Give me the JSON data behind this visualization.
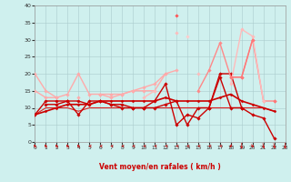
{
  "xlabel": "Vent moyen/en rafales ( km/h )",
  "xlim": [
    0,
    23
  ],
  "ylim": [
    0,
    40
  ],
  "yticks": [
    0,
    5,
    10,
    15,
    20,
    25,
    30,
    35,
    40
  ],
  "xticks": [
    0,
    1,
    2,
    3,
    4,
    5,
    6,
    7,
    8,
    9,
    10,
    11,
    12,
    13,
    14,
    15,
    16,
    17,
    18,
    19,
    20,
    21,
    22,
    23
  ],
  "bg_color": "#cff0ee",
  "grid_color": "#aacccc",
  "series": [
    {
      "y": [
        8,
        12,
        12,
        12,
        8,
        12,
        12,
        11,
        11,
        10,
        10,
        12,
        17,
        5,
        8,
        7,
        10,
        20,
        20,
        10,
        8,
        7,
        1,
        null
      ],
      "color": "#cc0000",
      "lw": 1.0,
      "marker": "D",
      "ms": 1.8
    },
    {
      "y": [
        null,
        11,
        11,
        12,
        12,
        11,
        12,
        11,
        10,
        10,
        10,
        10,
        11,
        12,
        5,
        10,
        10,
        19,
        10,
        10,
        null,
        null,
        null,
        null
      ],
      "color": "#cc0000",
      "lw": 1.0,
      "marker": "D",
      "ms": 1.8
    },
    {
      "y": [
        20,
        15,
        13,
        14,
        20,
        14,
        14,
        14,
        14,
        15,
        15,
        15,
        20,
        21,
        null,
        null,
        null,
        null,
        null,
        null,
        null,
        null,
        null,
        null
      ],
      "color": "#ffaaaa",
      "lw": 1.0,
      "marker": "D",
      "ms": 1.8
    },
    {
      "y": [
        15,
        13,
        13,
        null,
        13,
        null,
        14,
        13,
        14,
        15,
        16,
        17,
        20,
        null,
        null,
        null,
        null,
        null,
        null,
        null,
        null,
        null,
        null,
        null
      ],
      "color": "#ffaaaa",
      "lw": 1.0,
      "marker": "D",
      "ms": 1.8
    },
    {
      "y": [
        null,
        null,
        null,
        null,
        null,
        null,
        null,
        null,
        null,
        null,
        null,
        null,
        null,
        null,
        null,
        15,
        21,
        29,
        19,
        19,
        30,
        12,
        12,
        null
      ],
      "color": "#ff8888",
      "lw": 1.0,
      "marker": "D",
      "ms": 1.8
    },
    {
      "y": [
        null,
        null,
        null,
        null,
        null,
        null,
        null,
        null,
        null,
        null,
        13,
        15,
        null,
        32,
        null,
        20,
        null,
        null,
        17,
        33,
        31,
        12,
        null,
        null
      ],
      "color": "#ffbbbb",
      "lw": 1.0,
      "marker": "D",
      "ms": 1.8
    },
    {
      "y": [
        null,
        null,
        null,
        null,
        null,
        null,
        null,
        null,
        null,
        null,
        null,
        null,
        null,
        37,
        null,
        null,
        null,
        null,
        null,
        null,
        null,
        null,
        null,
        null
      ],
      "color": "#ff5555",
      "lw": 1.0,
      "marker": "D",
      "ms": 1.8
    },
    {
      "y": [
        null,
        null,
        null,
        null,
        null,
        null,
        null,
        null,
        null,
        null,
        null,
        null,
        null,
        null,
        31,
        null,
        null,
        null,
        null,
        null,
        null,
        null,
        null,
        null
      ],
      "color": "#ffcccc",
      "lw": 1.0,
      "marker": "D",
      "ms": 1.8
    },
    {
      "y": [
        null,
        null,
        null,
        null,
        null,
        null,
        null,
        null,
        null,
        null,
        null,
        null,
        null,
        null,
        null,
        null,
        null,
        null,
        19,
        19,
        30,
        null,
        12,
        null
      ],
      "color": "#ff7777",
      "lw": 1.0,
      "marker": "D",
      "ms": 1.8
    },
    {
      "y": [
        8,
        10,
        10,
        10,
        9,
        10,
        10,
        10,
        10,
        10,
        10,
        10,
        10,
        10,
        10,
        10,
        10,
        10,
        10,
        10,
        10,
        10,
        9,
        null
      ],
      "color": "#dd2222",
      "lw": 0.8,
      "marker": null,
      "ms": 0
    },
    {
      "y": [
        8,
        9,
        10,
        11,
        11,
        11,
        12,
        12,
        12,
        12,
        12,
        12,
        13,
        12,
        12,
        12,
        12,
        13,
        14,
        12,
        11,
        10,
        9,
        null
      ],
      "color": "#cc0000",
      "lw": 1.2,
      "marker": "D",
      "ms": 1.5
    }
  ],
  "wind_dirs": [
    225,
    225,
    225,
    225,
    225,
    270,
    270,
    270,
    270,
    270,
    270,
    270,
    270,
    270,
    270,
    270,
    270,
    270,
    315,
    360,
    45,
    22,
    22,
    0
  ]
}
